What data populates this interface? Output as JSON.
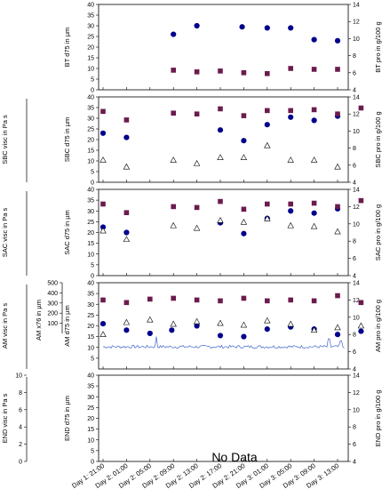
{
  "x_tick_labels": [
    "Day 1: 21:00",
    "Day 2: 01:00",
    "Day 2: 05:00",
    "Day 2: 09:00",
    "Day 2: 13:00",
    "Day 2: 17:00",
    "Day 2: 21:00",
    "Day 3: 01:00",
    "Day 3: 05:00",
    "Day 3: 09:00",
    "Day 3: 13:00"
  ],
  "colors": {
    "d75": "#00008B",
    "pro": "#6B1B4E",
    "visc": "#000000",
    "trace": "#4466CC"
  },
  "chart_data": [
    {
      "type": "scatter",
      "panel": "BT",
      "ylabel": "BT d75 in µm",
      "ylabel_right": "BT pro in g/100 g",
      "ylabel_left_outer": "",
      "ylim": [
        0,
        40
      ],
      "yticks": [
        0,
        5,
        10,
        15,
        20,
        25,
        30,
        35,
        40
      ],
      "ylim_right": [
        4,
        14
      ],
      "yticks_right": [
        4,
        6,
        8,
        10,
        12,
        14
      ],
      "series": [
        {
          "key": "d75",
          "marker": "circle",
          "x": [
            3,
            4,
            5.93,
            7,
            8,
            9,
            10
          ],
          "values": [
            26,
            30,
            29.5,
            29,
            29,
            23.5,
            23
          ]
        },
        {
          "key": "pro",
          "marker": "square",
          "x": [
            3,
            4,
            5,
            6,
            7,
            8,
            9,
            10
          ],
          "values": [
            6.3,
            6.1,
            6.2,
            6.0,
            5.9,
            6.5,
            6.4,
            6.4
          ]
        }
      ]
    },
    {
      "type": "scatter",
      "panel": "SBC",
      "ylabel": "SBC d75 in µm",
      "ylabel_right": "SBC pro in g/100 g",
      "ylabel_left_outer": "SBC visc in Pa s",
      "ylim": [
        0,
        40
      ],
      "yticks": [
        0,
        5,
        10,
        15,
        20,
        25,
        30,
        35,
        40
      ],
      "ylim_right": [
        4,
        14
      ],
      "yticks_right": [
        4,
        6,
        8,
        10,
        12,
        14
      ],
      "series": [
        {
          "key": "d75",
          "marker": "circle",
          "x": [
            0,
            1,
            5,
            6,
            7,
            8,
            9,
            10
          ],
          "values": [
            23,
            21,
            24.5,
            19.5,
            27,
            30.5,
            29,
            31
          ]
        },
        {
          "key": "pro",
          "marker": "square",
          "x": [
            0,
            1,
            3,
            4,
            5,
            6,
            7,
            8,
            9,
            10,
            11
          ],
          "values": [
            12.3,
            11.3,
            12.1,
            12.0,
            12.6,
            11.8,
            12.4,
            12.4,
            12.5,
            12.0,
            12.7
          ]
        },
        {
          "key": "visc",
          "marker": "triangle",
          "x": [
            0,
            1,
            3,
            4,
            5,
            6,
            7,
            8,
            9,
            10
          ],
          "values": [
            6.6,
            5.8,
            6.6,
            6.2,
            6.9,
            6.9,
            8.3,
            6.6,
            6.6,
            5.8
          ]
        }
      ]
    },
    {
      "type": "scatter",
      "panel": "SAC",
      "ylabel": "SAC d75 in µm",
      "ylabel_right": "SAC pro in g/100 g",
      "ylabel_left_outer": "SAC visc in Pa s",
      "ylim": [
        0,
        40
      ],
      "yticks": [
        0,
        5,
        10,
        15,
        20,
        25,
        30,
        35,
        40
      ],
      "ylim_right": [
        4,
        14
      ],
      "yticks_right": [
        4,
        6,
        8,
        10,
        12,
        14
      ],
      "series": [
        {
          "key": "d75",
          "marker": "circle",
          "x": [
            0,
            1,
            5,
            6,
            7,
            8,
            9,
            10
          ],
          "values": [
            22.5,
            20,
            24.5,
            19.5,
            26.5,
            30,
            29,
            31
          ]
        },
        {
          "key": "pro",
          "marker": "square",
          "x": [
            0,
            1,
            3,
            4,
            5,
            6,
            7,
            8,
            9,
            10,
            11
          ],
          "values": [
            12.3,
            11.3,
            12.0,
            11.9,
            12.6,
            11.7,
            12.3,
            12.3,
            12.4,
            12.0,
            12.7
          ]
        },
        {
          "key": "visc",
          "marker": "triangle",
          "x": [
            0,
            1,
            3,
            4,
            5,
            6,
            7,
            8,
            9,
            10
          ],
          "values": [
            9.2,
            8.2,
            9.8,
            9.5,
            10.4,
            10.2,
            10.6,
            9.8,
            9.7,
            9.1
          ]
        }
      ]
    },
    {
      "type": "scatter",
      "panel": "AM",
      "ylabel": "AM d75 in µm",
      "ylabel_right": "AM pro in g/100 g",
      "ylabel_left_outer": "AM visc in Pa s",
      "ylabel_left_mid": "AM x76 in µm",
      "ylim": [
        0,
        40
      ],
      "yticks": [
        5,
        10,
        15,
        20,
        25,
        30,
        35,
        40
      ],
      "ylim_right": [
        4,
        14
      ],
      "yticks_right": [
        4,
        6,
        8,
        10,
        12,
        14
      ],
      "ylim_x76": [
        0,
        500
      ],
      "yticks_x76": [
        100,
        200,
        300,
        400,
        500
      ],
      "series": [
        {
          "key": "d75",
          "marker": "circle",
          "x": [
            0,
            1,
            2,
            2.93,
            4,
            5,
            6,
            7,
            8,
            9,
            10,
            11
          ],
          "values": [
            21,
            18,
            16.5,
            18,
            20,
            15.5,
            15,
            18.5,
            19.5,
            18.5,
            16,
            17.5
          ]
        },
        {
          "key": "pro",
          "marker": "square",
          "x": [
            0,
            1,
            2,
            3,
            4,
            5,
            6,
            7,
            8,
            9,
            10,
            11
          ],
          "values": [
            12.0,
            11.7,
            12.1,
            12.2,
            12.0,
            11.9,
            12.2,
            11.9,
            12.0,
            11.9,
            12.5,
            11.7
          ]
        },
        {
          "key": "visc",
          "marker": "triangle",
          "x": [
            0,
            1,
            2,
            3,
            4,
            5,
            6,
            7,
            8,
            9,
            10,
            11
          ],
          "values": [
            8.0,
            9.4,
            9.7,
            9.2,
            9.5,
            9.3,
            9.1,
            9.6,
            9.2,
            8.5,
            8.8,
            9.0
          ]
        }
      ],
      "x76_trace": "≈100 with short spikes"
    },
    {
      "type": "scatter",
      "panel": "END",
      "ylabel": "END d75 in µm",
      "ylabel_right": "END pro in g/100 g",
      "ylabel_left_outer": "END visc in Pa s",
      "ylim": [
        0,
        40
      ],
      "yticks": [
        0,
        5,
        10,
        15,
        20,
        25,
        30,
        35,
        40
      ],
      "ylim_right": [
        4,
        14
      ],
      "yticks_right": [
        4,
        6,
        8,
        10,
        12,
        14
      ],
      "outer_ylim": [
        0,
        10
      ],
      "outer_yticks": [
        0,
        2,
        4,
        6,
        8,
        10
      ],
      "annotation": "No Data",
      "series": []
    }
  ]
}
